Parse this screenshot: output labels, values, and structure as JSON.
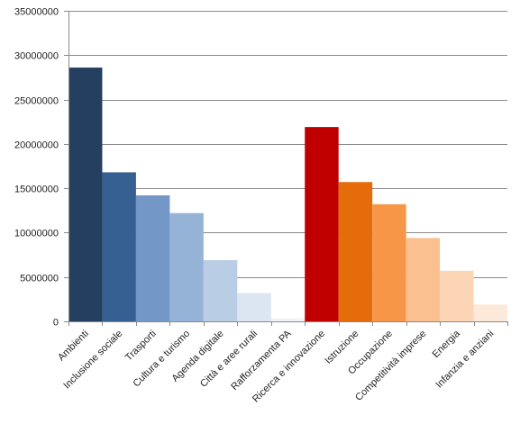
{
  "chart_data": {
    "type": "bar",
    "title": "",
    "xlabel": "",
    "ylabel": "",
    "ylim": [
      0,
      35000000
    ],
    "yticks": [
      0,
      5000000,
      10000000,
      15000000,
      20000000,
      25000000,
      30000000,
      35000000
    ],
    "ytick_labels": [
      "0",
      "5000000",
      "10000000",
      "15000000",
      "20000000",
      "25000000",
      "30000000",
      "35000000"
    ],
    "grid": true,
    "legend": "none",
    "categories": [
      "Ambienti",
      "Inclusione sociale",
      "Trasporti",
      "Cultura e turismo",
      "Agenda digitale",
      "Città e aree rurali",
      "Rafforzamenta PA",
      "Ricerca e innovazione",
      "Istruzione",
      "Occupazione",
      "Competitività imprese",
      "Energia",
      "Infanzia e anziani"
    ],
    "values": [
      28600000,
      16800000,
      14200000,
      12200000,
      6900000,
      3200000,
      350000,
      21900000,
      15700000,
      13200000,
      9400000,
      5700000,
      1900000
    ],
    "colors": [
      "#243f60",
      "#376092",
      "#7397c6",
      "#95b3d7",
      "#b9cde5",
      "#dce6f2",
      "#eef3f9",
      "#c00000",
      "#e46c0a",
      "#f79646",
      "#fac090",
      "#fcd5b5",
      "#fde9d9"
    ]
  }
}
